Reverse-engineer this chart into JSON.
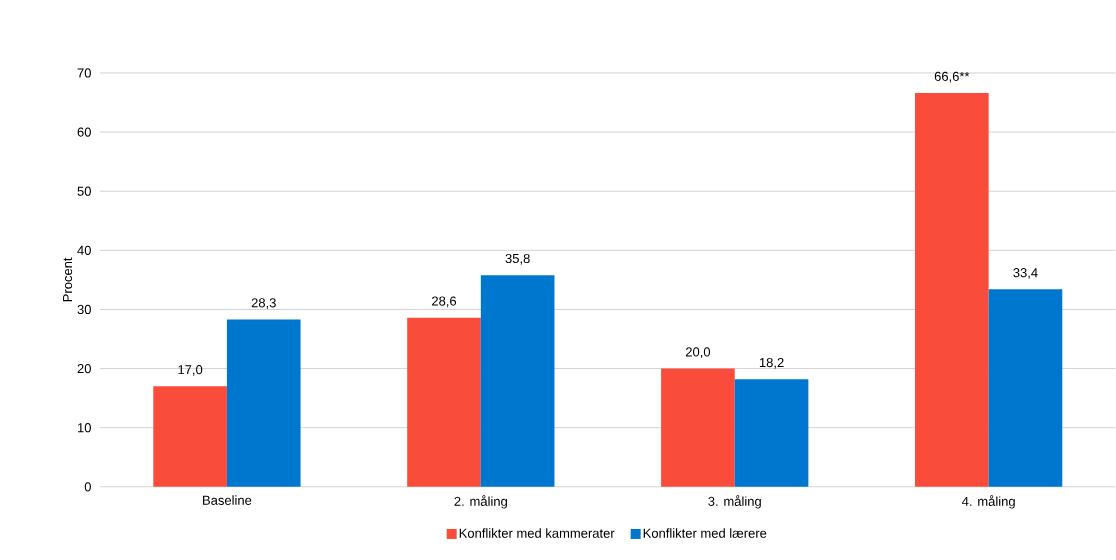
{
  "chart_data": {
    "type": "bar",
    "ylabel": "Procent",
    "categories": [
      "Baseline",
      "2. måling",
      "3. måling",
      "4. måling"
    ],
    "series": [
      {
        "name": "Konflikter med kammerater",
        "color": "#f94c3b",
        "values": [
          17.0,
          28.6,
          20.0,
          66.6
        ],
        "value_labels": [
          "17,0",
          "28,6",
          "20,0",
          "66,6**"
        ]
      },
      {
        "name": "Konflikter med lærere",
        "color": "#0077cf",
        "values": [
          28.3,
          35.8,
          18.2,
          33.4
        ],
        "value_labels": [
          "28,3",
          "35,8",
          "18,2",
          "33,4"
        ]
      }
    ],
    "ylim": [
      0,
      70
    ],
    "yticks": [
      0,
      10,
      20,
      30,
      40,
      50,
      60,
      70
    ],
    "grid": "y",
    "legend": "bottom"
  }
}
